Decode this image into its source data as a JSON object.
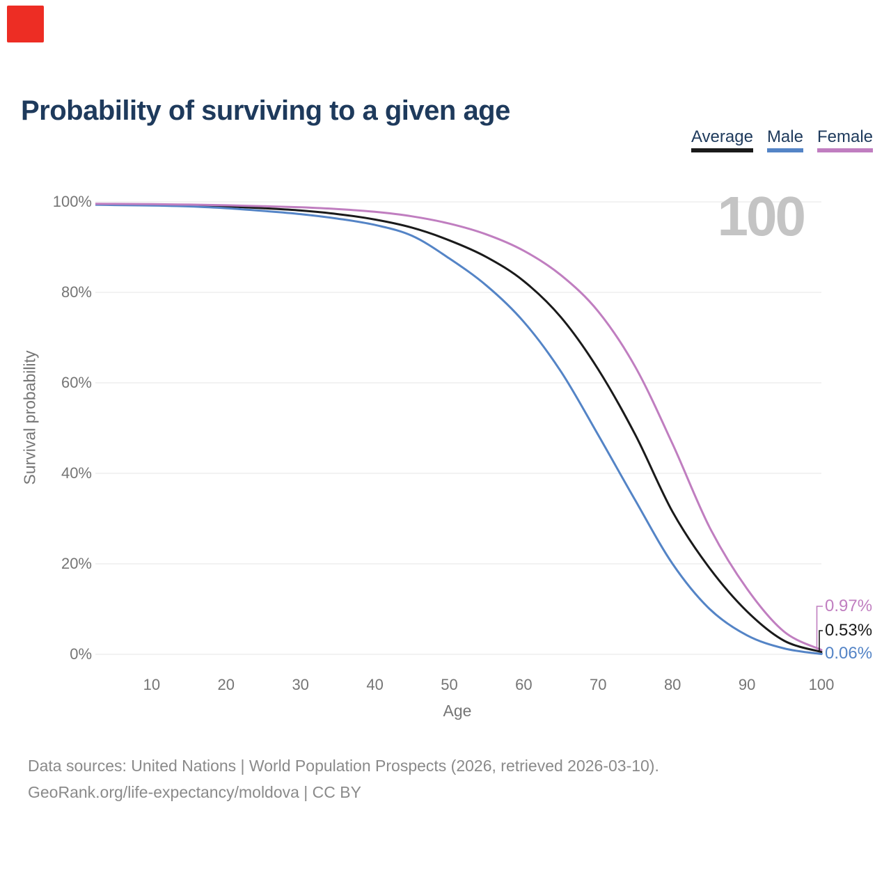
{
  "page": {
    "title": "Probability of surviving to a given age"
  },
  "decor": {
    "corner_square_color": "#ed2d24",
    "watermark_text": "100",
    "watermark_color": "#c4c4c4"
  },
  "legend": {
    "items": [
      {
        "label": "Average",
        "color": "#1a1a1a"
      },
      {
        "label": "Male",
        "color": "#5484c6"
      },
      {
        "label": "Female",
        "color": "#c07ec0"
      }
    ]
  },
  "footer": {
    "line1": "Data sources: United Nations | World Population Prospects (2026, retrieved 2026-03-10).",
    "line2": "GeoRank.org/life-expectancy/moldova | CC BY"
  },
  "chart_data": {
    "type": "line",
    "title": "Probability of surviving to a given age",
    "xlabel": "Age",
    "ylabel": "Survival probability",
    "xlim": [
      1,
      100
    ],
    "ylim": [
      0,
      100
    ],
    "grid": "horizontal",
    "legend_position": "top-right",
    "x_ticks": [
      10,
      20,
      30,
      40,
      50,
      60,
      70,
      80,
      90,
      100
    ],
    "x_tick_labels": [
      "10",
      "20",
      "30",
      "40",
      "50",
      "60",
      "70",
      "80",
      "90",
      "100"
    ],
    "y_ticks": [
      100,
      80,
      60,
      40,
      20,
      0
    ],
    "y_tick_labels": [
      "100%",
      "80%",
      "60%",
      "40%",
      "20%",
      "0%"
    ],
    "ages": [
      1,
      5,
      10,
      15,
      20,
      25,
      30,
      35,
      40,
      45,
      50,
      55,
      60,
      65,
      70,
      75,
      80,
      85,
      90,
      95,
      100
    ],
    "series": [
      {
        "name": "Average",
        "color": "#1a1a1a",
        "end_label": "0.53%",
        "values": [
          99.5,
          99.45,
          99.35,
          99.2,
          99.0,
          98.6,
          98.1,
          97.3,
          96.1,
          94.3,
          91.5,
          87.8,
          82.5,
          74.5,
          63.0,
          48.5,
          31.5,
          19.0,
          9.5,
          3.0,
          0.53
        ]
      },
      {
        "name": "Male",
        "color": "#5484c6",
        "end_label": "0.06%",
        "values": [
          99.4,
          99.3,
          99.2,
          99.0,
          98.6,
          98.0,
          97.3,
          96.3,
          94.9,
          92.5,
          87.5,
          81.5,
          73.5,
          62.5,
          48.5,
          34.0,
          20.0,
          10.0,
          4.2,
          1.3,
          0.06
        ]
      },
      {
        "name": "Female",
        "color": "#c07ec0",
        "end_label": "0.97%",
        "values": [
          99.6,
          99.55,
          99.5,
          99.4,
          99.25,
          99.05,
          98.8,
          98.4,
          97.8,
          96.8,
          95.2,
          92.8,
          89.2,
          83.8,
          75.8,
          63.5,
          46.5,
          28.0,
          14.5,
          5.0,
          0.97
        ]
      }
    ]
  }
}
